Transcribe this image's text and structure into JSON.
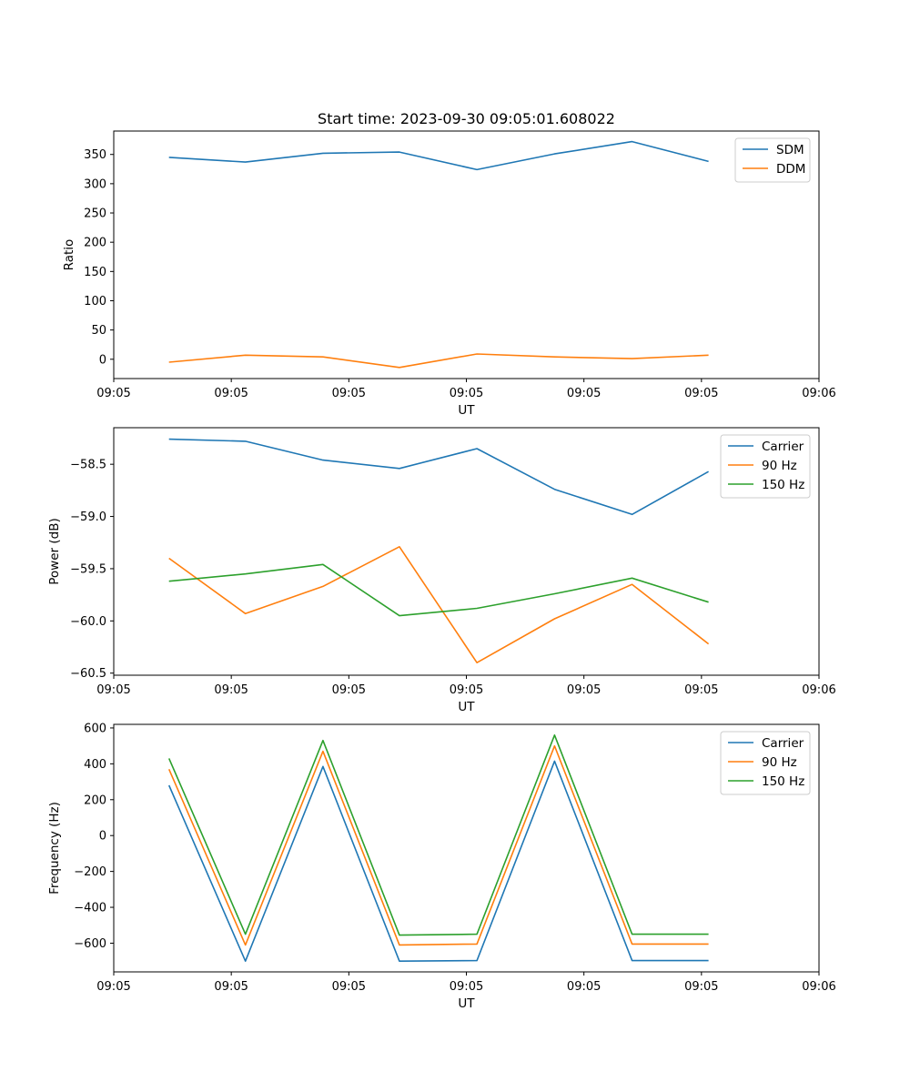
{
  "chart_data": [
    {
      "type": "line",
      "title": "Start time: 2023-09-30 09:05:01.608022",
      "xlabel": "UT",
      "ylabel": "Ratio",
      "xlim": [
        0,
        6
      ],
      "ylim": [
        -33,
        390
      ],
      "x_tick_positions": [
        0,
        1,
        2,
        3,
        4,
        5,
        6
      ],
      "x_tick_labels": [
        "09:05",
        "09:05",
        "09:05",
        "09:05",
        "09:05",
        "09:05",
        "09:06"
      ],
      "y_ticks": [
        0,
        50,
        100,
        150,
        200,
        250,
        300,
        350
      ],
      "y_tick_labels": [
        "0",
        "50",
        "100",
        "150",
        "200",
        "250",
        "300",
        "350"
      ],
      "x": [
        0.47,
        1.12,
        1.78,
        2.43,
        3.09,
        3.75,
        4.41,
        5.06
      ],
      "series": [
        {
          "name": "SDM",
          "color": "#1f77b4",
          "values": [
            345,
            337,
            352,
            354,
            324,
            351,
            372,
            338
          ]
        },
        {
          "name": "DDM",
          "color": "#ff7f0e",
          "values": [
            -5,
            7,
            4,
            -14,
            9,
            4,
            1,
            7
          ]
        }
      ],
      "legend": "top-right"
    },
    {
      "type": "line",
      "title": "",
      "xlabel": "UT",
      "ylabel": "Power (dB)",
      "xlim": [
        0,
        6
      ],
      "ylim": [
        -60.52,
        -58.15
      ],
      "x_tick_positions": [
        0,
        1,
        2,
        3,
        4,
        5,
        6
      ],
      "x_tick_labels": [
        "09:05",
        "09:05",
        "09:05",
        "09:05",
        "09:05",
        "09:05",
        "09:06"
      ],
      "y_ticks": [
        -60.5,
        -60.0,
        -59.5,
        -59.0,
        -58.5
      ],
      "y_tick_labels": [
        "−60.5",
        "−60.0",
        "−59.5",
        "−59.0",
        "−58.5"
      ],
      "x": [
        0.47,
        1.12,
        1.78,
        2.43,
        3.09,
        3.75,
        4.41,
        5.06
      ],
      "series": [
        {
          "name": "Carrier",
          "color": "#1f77b4",
          "values": [
            -58.26,
            -58.28,
            -58.46,
            -58.54,
            -58.35,
            -58.74,
            -58.98,
            -58.57
          ]
        },
        {
          "name": "90 Hz",
          "color": "#ff7f0e",
          "values": [
            -59.4,
            -59.93,
            -59.67,
            -59.29,
            -60.4,
            -59.98,
            -59.65,
            -60.22
          ]
        },
        {
          "name": "150 Hz",
          "color": "#2ca02c",
          "values": [
            -59.62,
            -59.55,
            -59.46,
            -59.95,
            -59.88,
            -59.74,
            -59.59,
            -59.82
          ]
        }
      ],
      "legend": "top-right"
    },
    {
      "type": "line",
      "title": "",
      "xlabel": "UT",
      "ylabel": "Frequency (Hz)",
      "xlim": [
        0,
        6
      ],
      "ylim": [
        -760,
        620
      ],
      "x_tick_positions": [
        0,
        1,
        2,
        3,
        4,
        5,
        6
      ],
      "x_tick_labels": [
        "09:05",
        "09:05",
        "09:05",
        "09:05",
        "09:05",
        "09:05",
        "09:06"
      ],
      "y_ticks": [
        -600,
        -400,
        -200,
        0,
        200,
        400,
        600
      ],
      "y_tick_labels": [
        "−600",
        "−400",
        "−200",
        "0",
        "200",
        "400",
        "600"
      ],
      "x": [
        0.47,
        1.12,
        1.78,
        2.43,
        3.09,
        3.75,
        4.41,
        5.06
      ],
      "series": [
        {
          "name": "Carrier",
          "color": "#1f77b4",
          "values": [
            280,
            -700,
            385,
            -700,
            -697,
            415,
            -697,
            -697
          ]
        },
        {
          "name": "90 Hz",
          "color": "#ff7f0e",
          "values": [
            370,
            -610,
            470,
            -610,
            -605,
            500,
            -605,
            -605
          ]
        },
        {
          "name": "150 Hz",
          "color": "#2ca02c",
          "values": [
            430,
            -550,
            530,
            -555,
            -550,
            560,
            -550,
            -550
          ]
        }
      ],
      "legend": "top-right"
    }
  ]
}
